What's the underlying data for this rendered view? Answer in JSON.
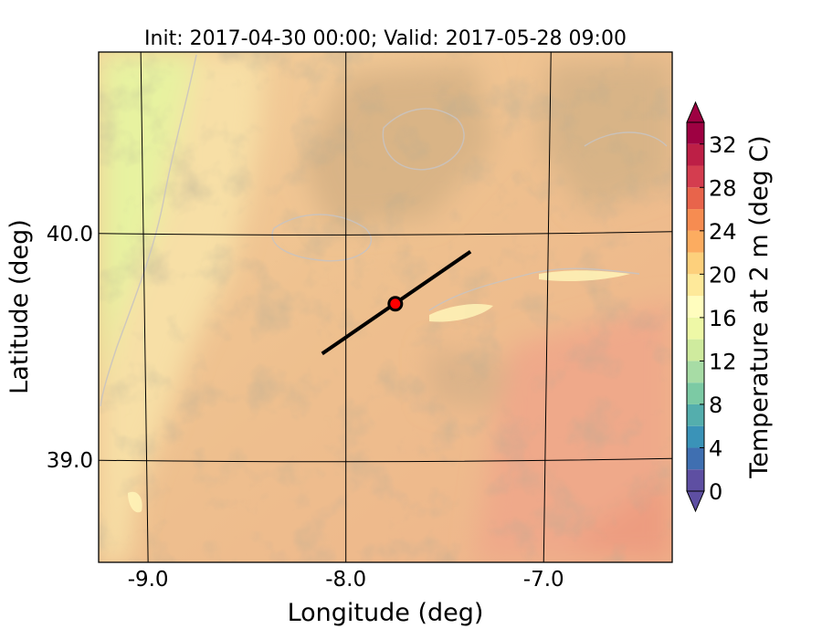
{
  "chart_data": {
    "type": "heatmap",
    "title": "Init: 2017-04-30 00:00; Valid: 2017-05-28 09:00",
    "xlabel": "Longitude (deg)",
    "ylabel": "Latitude (deg)",
    "xlim": [
      -9.25,
      -6.35
    ],
    "ylim": [
      38.55,
      40.8
    ],
    "xticks": [
      -9.0,
      -8.0,
      -7.0
    ],
    "xtick_labels": [
      "-9.0",
      "-8.0",
      "-7.0"
    ],
    "yticks": [
      39.0,
      40.0
    ],
    "ytick_labels": [
      "39.0",
      "40.0"
    ],
    "grid": true,
    "colorbar": {
      "label": "Temperature at 2 m (deg C)",
      "levels": [
        0,
        2,
        4,
        6,
        8,
        10,
        12,
        14,
        16,
        18,
        20,
        22,
        24,
        26,
        28,
        30,
        32,
        34
      ],
      "tick_values": [
        0,
        4,
        8,
        12,
        16,
        20,
        24,
        28,
        32
      ],
      "tick_labels": [
        "0",
        "4",
        "8",
        "12",
        "16",
        "20",
        "24",
        "28",
        "32"
      ],
      "colors": [
        "#5e4fa2",
        "#3f6fb1",
        "#3a93b8",
        "#54aead",
        "#7ccaa4",
        "#a7dca5",
        "#cfeb9e",
        "#eef8a6",
        "#fffdbe",
        "#fee99a",
        "#fdd07c",
        "#fcac60",
        "#f68c51",
        "#e8644b",
        "#d43d4f",
        "#bd1f46",
        "#9e0142"
      ],
      "extend": "both"
    },
    "cross_section": {
      "start": [
        -8.12,
        39.47
      ],
      "end": [
        -7.37,
        39.92
      ],
      "center": [
        -7.75,
        39.69
      ]
    }
  }
}
